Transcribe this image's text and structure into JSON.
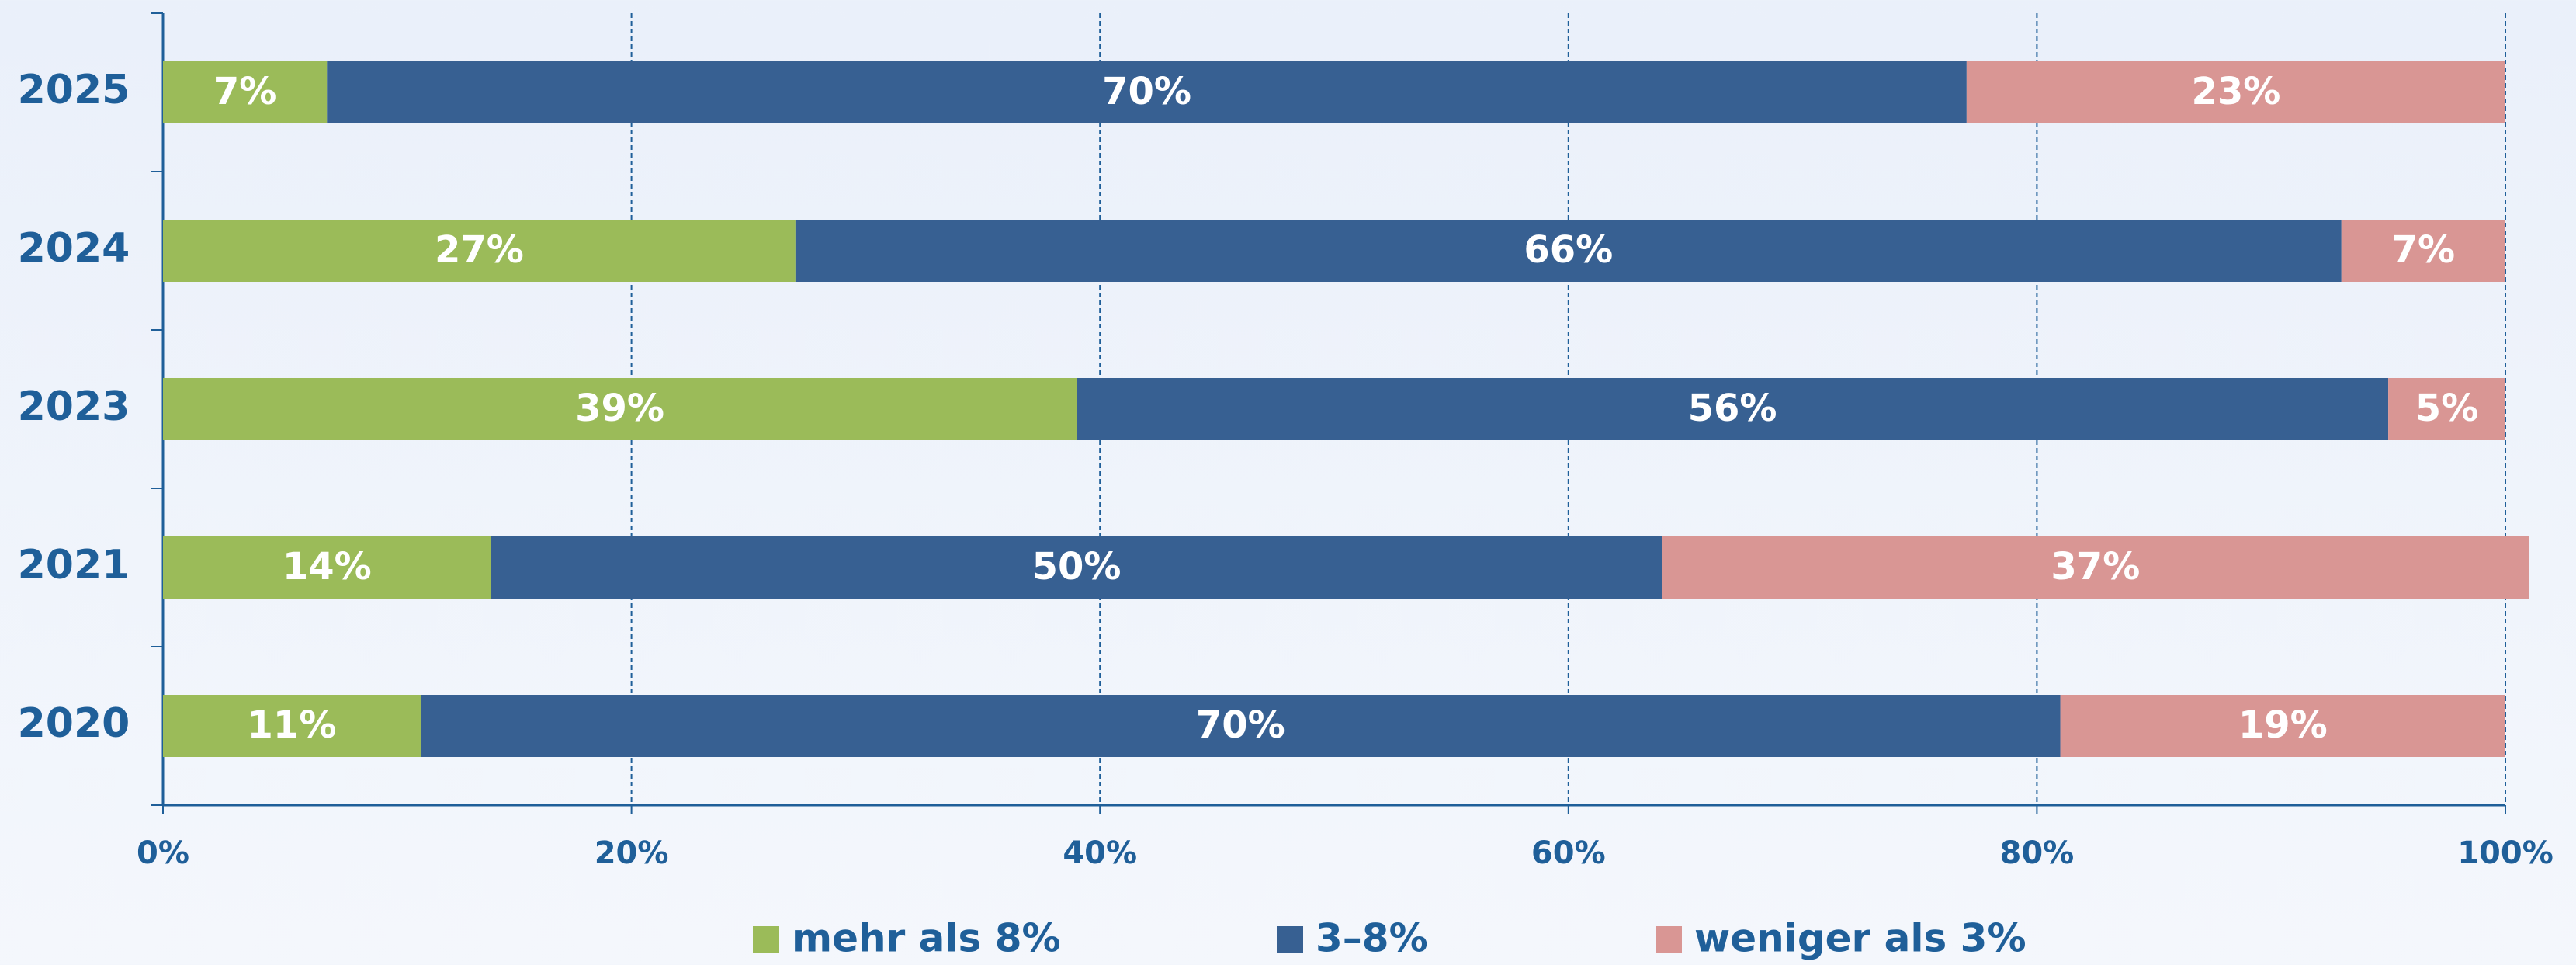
{
  "chart_data": {
    "type": "stacked_bar_horizontal",
    "categories": [
      "2025",
      "2024",
      "2023",
      "2021",
      "2020"
    ],
    "series": [
      {
        "name": "mehr als 8%",
        "color": "#9bbb59",
        "values": [
          7,
          27,
          39,
          14,
          11
        ],
        "value_labels": [
          "7%",
          "27%",
          "39%",
          "14%",
          "11%"
        ]
      },
      {
        "name": "3–8%",
        "color": "#376092",
        "values": [
          70,
          66,
          56,
          50,
          70
        ],
        "value_labels": [
          "70%",
          "66%",
          "56%",
          "50%",
          "70%"
        ]
      },
      {
        "name": "weniger als 3%",
        "color": "#d99694",
        "values": [
          23,
          7,
          5,
          37,
          19
        ],
        "value_labels": [
          "23%",
          "7%",
          "5%",
          "37%",
          "19%"
        ]
      }
    ],
    "xlim": [
      0,
      100
    ],
    "xticks": [
      {
        "value": 0,
        "label": "0%"
      },
      {
        "value": 20,
        "label": "20%"
      },
      {
        "value": 40,
        "label": "40%"
      },
      {
        "value": 60,
        "label": "60%"
      },
      {
        "value": 80,
        "label": "80%"
      },
      {
        "value": 100,
        "label": "100%"
      }
    ],
    "grid": true,
    "legend": "bottom"
  }
}
